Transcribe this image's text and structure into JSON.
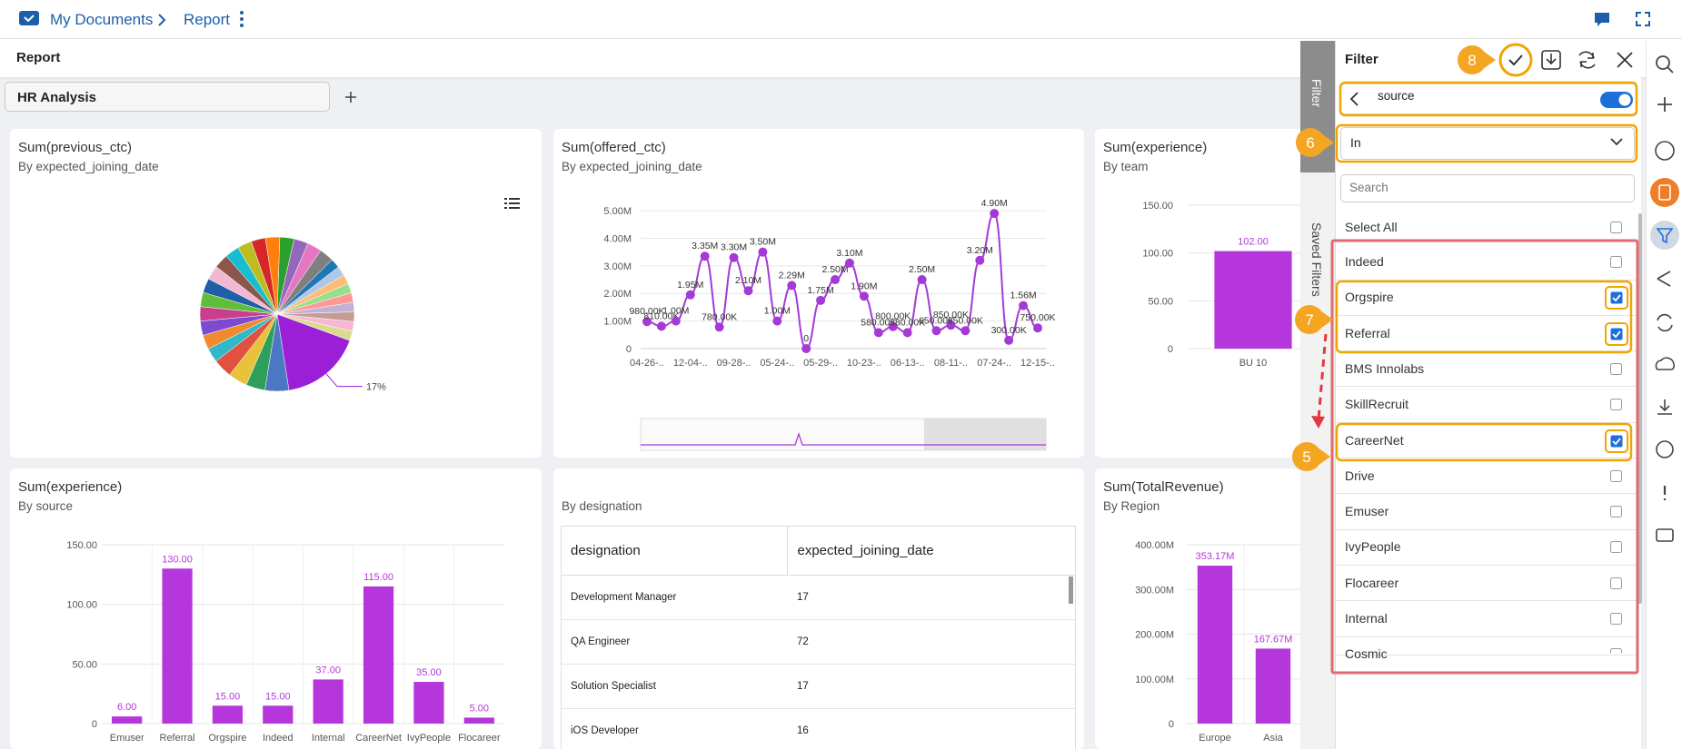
{
  "header": {
    "breadcrumb": [
      "My Documents",
      "Report"
    ]
  },
  "toolbar": {
    "title": "Report"
  },
  "tabs": [
    "HR Analysis"
  ],
  "widgets": [
    {
      "title": "Sum(previous_ctc)",
      "subtitle": "By expected_joining_date",
      "chart": {
        "type": "pie",
        "values": [
          17,
          5,
          4,
          4,
          4,
          3,
          3,
          3,
          3,
          3,
          3,
          3,
          3,
          3,
          3,
          3,
          3,
          3,
          3,
          3,
          3,
          2,
          2,
          2,
          2,
          2,
          2,
          2,
          2,
          2
        ],
        "value_labels": [
          "17%",
          null,
          null,
          null,
          null,
          null,
          null,
          null,
          null,
          null,
          null,
          null,
          null,
          null,
          null,
          null,
          null,
          null,
          null,
          null,
          null,
          null,
          null,
          null,
          null,
          null,
          null,
          null,
          null,
          null
        ],
        "colors": [
          "#9b1fd6",
          "#4a78c2",
          "#2e9e5b",
          "#e8c23a",
          "#e0523f",
          "#31b8c9",
          "#f08a2c",
          "#7d4bd1",
          "#c93f8e",
          "#5fbf3a",
          "#1f5fa8",
          "#f2b8d1",
          "#8c564b",
          "#17becf",
          "#bcbd22",
          "#d62728",
          "#ff7f0e",
          "#2ca02c",
          "#9467bd",
          "#e377c2",
          "#7f7f7f",
          "#1f77b4",
          "#aec7e8",
          "#ffbb78",
          "#98df8a",
          "#ff9896",
          "#c5b0d5",
          "#c49c94",
          "#f7b6d2",
          "#dbdb8d"
        ]
      }
    },
    {
      "title": "Sum(offered_ctc)",
      "subtitle": "By expected_joining_date",
      "chart": {
        "type": "line",
        "color": "#a43ad6",
        "categories": [
          "04-26-..",
          null,
          null,
          "12-04-..",
          null,
          null,
          "09-28-..",
          null,
          null,
          "05-24-..",
          null,
          null,
          "05-29-..",
          null,
          null,
          "10-23-..",
          null,
          null,
          "06-13-..",
          null,
          null,
          "08-11-..",
          null,
          null,
          "07-24-..",
          null,
          null,
          "12-15-.."
        ],
        "values": [
          980000,
          810000,
          1000000,
          1950000,
          3350000,
          780000,
          3300000,
          2100000,
          3500000,
          1000000,
          2290000,
          0,
          1750000,
          2500000,
          3100000,
          1900000,
          580000,
          800000,
          580000,
          2500000,
          650000,
          850000,
          650000,
          3200000,
          4900000,
          300000,
          1560000,
          750000
        ],
        "value_labels": [
          "980.00K",
          "810.00K",
          "1.00M",
          "1.95M",
          "3.35M",
          "780.00K",
          "3.30M",
          "2.10M",
          "3.50M",
          "1.00M",
          "2.29M",
          "0",
          "1.75M",
          "2.50M",
          "3.10M",
          "1.90M",
          "580.00K",
          "800.00K",
          "580.00K",
          "2.50M",
          "650.00K",
          "850.00K",
          "650.00K",
          "3.20M",
          "4.90M",
          "300.00K",
          "1.56M",
          "750.00K"
        ],
        "ylim": [
          0,
          5200000
        ],
        "yticks": [
          0,
          {
            "value": 1000000,
            "label": "1.00M"
          },
          {
            "value": 2000000,
            "label": "2.00M"
          },
          {
            "value": 3000000,
            "label": "3.00M"
          },
          {
            "value": 4000000,
            "label": "4.00M"
          },
          {
            "value": 5000000,
            "label": "5.00M"
          }
        ],
        "grid": true
      }
    },
    {
      "title": "Sum(experience)",
      "subtitle": "By team",
      "chart": {
        "type": "bar",
        "color": "#b536db",
        "categories": [
          "BU 10"
        ],
        "values": [
          102
        ],
        "value_labels": [
          "102.00"
        ],
        "ylim": [
          0,
          150
        ],
        "yticks": [
          0,
          {
            "value": 50,
            "label": "50.00"
          },
          {
            "value": 100,
            "label": "100.00"
          },
          {
            "value": 150,
            "label": "150.00"
          }
        ],
        "grid": true
      }
    },
    {
      "title": "Sum(experience)",
      "subtitle": "By source",
      "chart": {
        "type": "bar",
        "color": "#b536db",
        "categories": [
          "Emuser",
          "Referral",
          "Orgspire",
          "Indeed",
          "Internal",
          "CareerNet",
          "IvyPeople",
          "Flocareer"
        ],
        "values": [
          6,
          130,
          15,
          15,
          37,
          115,
          35,
          5
        ],
        "value_labels": [
          "6.00",
          "130.00",
          "15.00",
          "15.00",
          "37.00",
          "115.00",
          "35.00",
          "5.00"
        ],
        "ylim": [
          0,
          150
        ],
        "yticks": [
          0,
          {
            "value": 50,
            "label": "50.00"
          },
          {
            "value": 100,
            "label": "100.00"
          },
          {
            "value": 150,
            "label": "150.00"
          }
        ],
        "grid": true
      }
    },
    {
      "subtitle": "By designation",
      "chart": {
        "type": "table",
        "columns": [
          "designation",
          "expected_joining_date"
        ],
        "rows": [
          [
            "Development Manager",
            17
          ],
          [
            "QA Engineer",
            72
          ],
          [
            "Solution Specialist",
            17
          ],
          [
            "iOS Developer",
            16
          ]
        ]
      }
    },
    {
      "title": "Sum(TotalRevenue)",
      "subtitle": "By Region",
      "chart": {
        "type": "bar",
        "color": "#b536db",
        "categories": [
          "Europe",
          "Asia"
        ],
        "values": [
          353170000,
          167670000
        ],
        "value_labels": [
          "353.17M",
          "167.67M"
        ],
        "ylim": [
          0,
          400000000
        ],
        "yticks": [
          0,
          {
            "value": 100000000,
            "label": "100.00M"
          },
          {
            "value": 200000000,
            "label": "200.00M"
          },
          {
            "value": 300000000,
            "label": "300.00M"
          },
          {
            "value": 400000000,
            "label": "400.00M"
          }
        ],
        "grid": true
      }
    }
  ],
  "filter_panel": {
    "side_tabs": [
      "Filter",
      "Saved Filters"
    ],
    "title": "Filter",
    "field": "source",
    "operator": "In",
    "search_placeholder": "Search",
    "select_all": "Select All",
    "options": [
      {
        "label": "Indeed",
        "checked": false
      },
      {
        "label": "Orgspire",
        "checked": true
      },
      {
        "label": "Referral",
        "checked": true
      },
      {
        "label": "BMS Innolabs",
        "checked": false
      },
      {
        "label": "SkillRecruit",
        "checked": false
      },
      {
        "label": "CareerNet",
        "checked": true
      },
      {
        "label": "Drive",
        "checked": false
      },
      {
        "label": "Emuser",
        "checked": false
      },
      {
        "label": "IvyPeople",
        "checked": false
      },
      {
        "label": "Flocareer",
        "checked": false
      },
      {
        "label": "Internal",
        "checked": false
      },
      {
        "label": "Cosmic",
        "checked": false
      }
    ],
    "callouts": [
      8,
      6,
      7,
      5
    ]
  }
}
